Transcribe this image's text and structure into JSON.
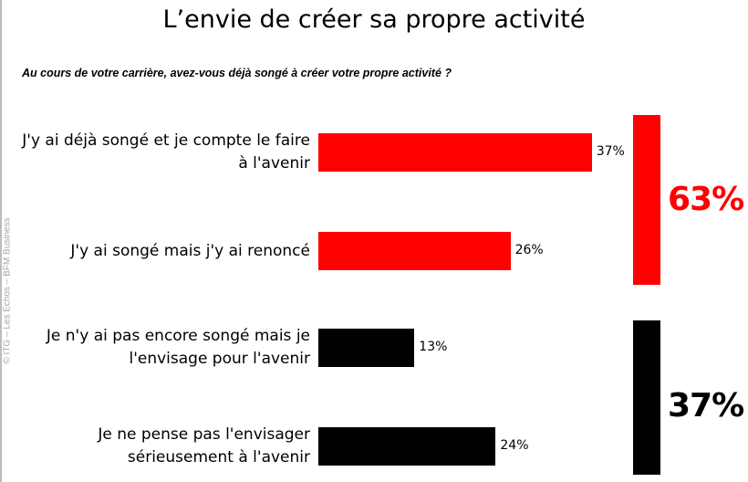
{
  "watermark": "© ITG – Les Echos – BFM Business",
  "chart_data": {
    "type": "bar",
    "orientation": "horizontal",
    "title": "L’envie de créer sa propre activité",
    "subtitle": "Au cours de votre carrière, avez-vous déjà songé à créer votre propre activité ?",
    "categories": [
      [
        "J'y ai déjà songé et je compte le faire",
        "à l'avenir"
      ],
      [
        "J'y ai songé mais j'y ai renoncé"
      ],
      [
        "Je n'y ai pas encore songé mais je",
        "l'envisage pour l'avenir"
      ],
      [
        "Je ne pense pas l'envisager",
        "sérieusement à l'avenir"
      ]
    ],
    "values": [
      37,
      26,
      13,
      24
    ],
    "value_labels": [
      "37%",
      "26%",
      "13%",
      "24%"
    ],
    "bar_colors": [
      "#ff0000",
      "#ff0000",
      "#000000",
      "#000000"
    ],
    "unit": "%",
    "groups": [
      {
        "members": [
          0,
          1
        ],
        "total": 63,
        "label": "63%",
        "color": "#ff0000"
      },
      {
        "members": [
          2,
          3
        ],
        "total": 37,
        "label": "37%",
        "color": "#000000"
      }
    ],
    "grid": false
  }
}
